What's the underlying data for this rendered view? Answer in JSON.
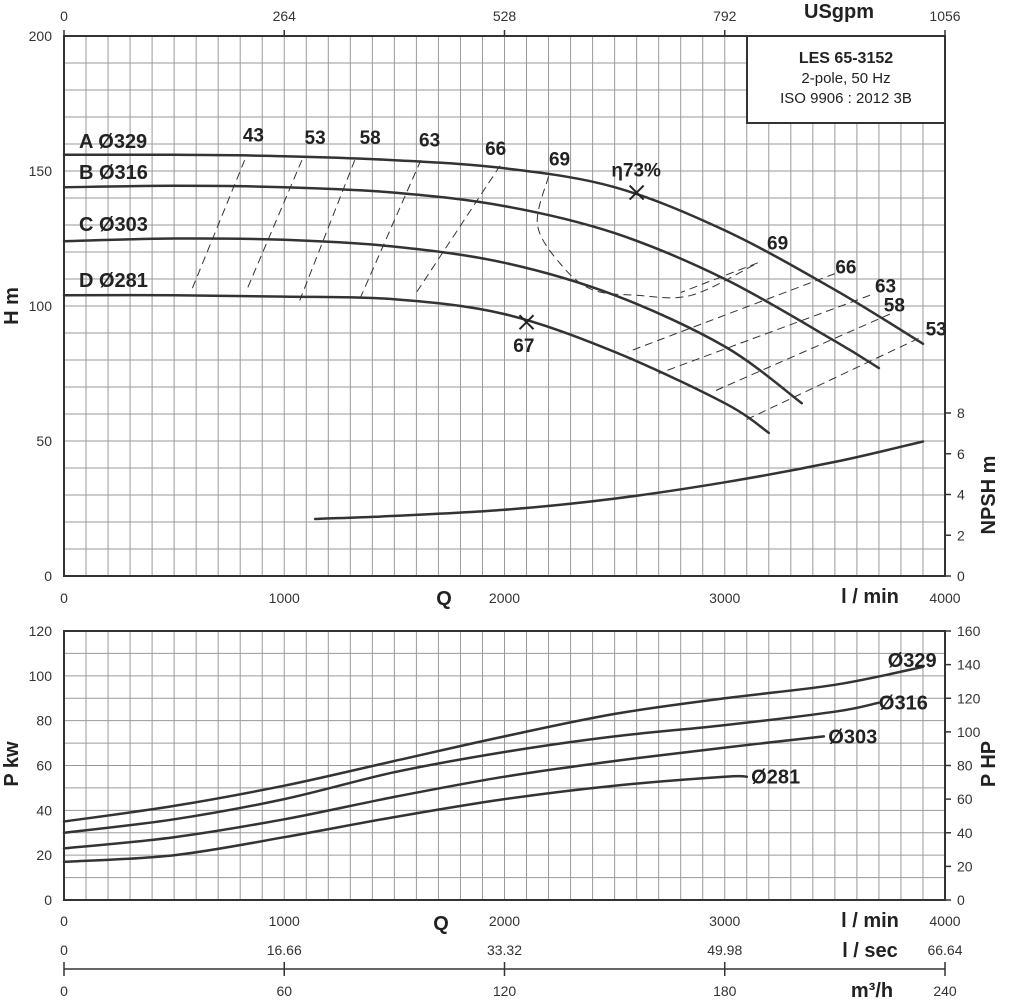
{
  "chart_data": [
    {
      "id": "head",
      "type": "line",
      "title": "LES 65-3152",
      "subtitle_lines": [
        "2-pole, 50 Hz",
        "ISO 9906 : 2012 3B"
      ],
      "xlabel": "Q",
      "xunit": "l / min",
      "xlim": [
        0,
        4000
      ],
      "x_ticks": [
        "0",
        "1000",
        "2000",
        "3000",
        "4000"
      ],
      "top_axis_label": "USgpm",
      "top_ticks": [
        "0",
        "264",
        "528",
        "792",
        "1056"
      ],
      "ylabel": "H m",
      "ylim": [
        0,
        200
      ],
      "y_ticks": [
        "0",
        "50",
        "100",
        "150",
        "200"
      ],
      "y2label": "NPSH m",
      "y2_ticks": [
        "0",
        "2",
        "4",
        "6",
        "8"
      ],
      "series": [
        {
          "name": "A Ø329",
          "x": [
            0,
            500,
            1000,
            1500,
            2000,
            2500,
            3000,
            3500,
            3900
          ],
          "y": [
            156,
            156,
            155.5,
            154,
            151,
            144,
            128,
            106,
            86
          ]
        },
        {
          "name": "B Ø316",
          "x": [
            0,
            500,
            1000,
            1500,
            2000,
            2500,
            3000,
            3500,
            3700
          ],
          "y": [
            144,
            144.5,
            144,
            142,
            137,
            127,
            110,
            87,
            77
          ]
        },
        {
          "name": "C Ø303",
          "x": [
            0,
            500,
            1000,
            1500,
            2000,
            2500,
            3000,
            3350
          ],
          "y": [
            124,
            125,
            124.5,
            122,
            116,
            104,
            85,
            64
          ]
        },
        {
          "name": "D Ø281",
          "x": [
            0,
            500,
            1000,
            1500,
            2000,
            2500,
            3000,
            3200
          ],
          "y": [
            104,
            104,
            103.5,
            102.5,
            97,
            83,
            64,
            53
          ]
        }
      ],
      "npsh": {
        "x": [
          1140,
          1500,
          2000,
          2500,
          3000,
          3500,
          3900
        ],
        "y": [
          2.8,
          2.95,
          3.25,
          3.8,
          4.6,
          5.6,
          6.6
        ]
      },
      "efficiency_lines": [
        {
          "label": "43",
          "points": [
            [
              820,
              154
            ],
            [
              580,
              106
            ]
          ]
        },
        {
          "label": "53",
          "points": [
            [
              1080,
              154
            ],
            [
              830,
              106
            ]
          ]
        },
        {
          "label": "58",
          "points": [
            [
              1320,
              154
            ],
            [
              1070,
              102
            ]
          ]
        },
        {
          "label": "63",
          "points": [
            [
              1620,
              154
            ],
            [
              1340,
              102
            ]
          ]
        },
        {
          "label": "66",
          "points": [
            [
              1980,
              152
            ],
            [
              1600,
              105
            ]
          ]
        },
        {
          "label": "69",
          "points": [
            [
              2200,
              148
            ],
            [
              2150,
              130
            ],
            [
              2260,
              115
            ],
            [
              2400,
              106
            ],
            [
              2600,
              104
            ],
            [
              2850,
              104
            ],
            [
              3150,
              116
            ]
          ]
        },
        {
          "label": "69",
          "points": [
            [
              3150,
              116
            ],
            [
              2800,
              105
            ]
          ]
        },
        {
          "label": "66",
          "points": [
            [
              3500,
              112
            ],
            [
              2560,
              83
            ]
          ]
        },
        {
          "label": "63",
          "points": [
            [
              3660,
              104
            ],
            [
              2700,
              75
            ]
          ]
        },
        {
          "label": "58",
          "points": [
            [
              3750,
              97
            ],
            [
              2940,
              68
            ]
          ]
        },
        {
          "label": "53",
          "points": [
            [
              3880,
              88
            ],
            [
              3100,
              58
            ]
          ]
        }
      ],
      "efficiency_labels": [
        {
          "text": "43",
          "x": 860,
          "y": 161
        },
        {
          "text": "53",
          "x": 1140,
          "y": 160
        },
        {
          "text": "58",
          "x": 1390,
          "y": 160
        },
        {
          "text": "63",
          "x": 1660,
          "y": 159
        },
        {
          "text": "66",
          "x": 1960,
          "y": 156
        },
        {
          "text": "69",
          "x": 2250,
          "y": 152
        },
        {
          "text": "69",
          "x": 3240,
          "y": 121
        },
        {
          "text": "66",
          "x": 3550,
          "y": 112
        },
        {
          "text": "63",
          "x": 3730,
          "y": 105
        },
        {
          "text": "58",
          "x": 3770,
          "y": 98
        },
        {
          "text": "53",
          "x": 3960,
          "y": 89
        }
      ],
      "markers": [
        {
          "label": "η73%",
          "x": 2600,
          "y": 142,
          "lx": 2485,
          "ly": 148
        },
        {
          "label": "67",
          "x": 2100,
          "y": 94,
          "lx": 2040,
          "ly": 83
        }
      ]
    },
    {
      "id": "power",
      "type": "line",
      "xlabel": "Q",
      "xunit": "l / min",
      "xlim": [
        0,
        4000
      ],
      "x_ticks": [
        "0",
        "1000",
        "2000",
        "3000",
        "4000"
      ],
      "ylabel": "P kw",
      "ylim": [
        0,
        120
      ],
      "y_ticks": [
        "0",
        "20",
        "40",
        "60",
        "80",
        "100",
        "120"
      ],
      "y2label": "P HP",
      "y2_ticks": [
        "0",
        "20",
        "40",
        "60",
        "80",
        "100",
        "120",
        "140",
        "160"
      ],
      "series": [
        {
          "name": "Ø329",
          "x": [
            0,
            500,
            1000,
            1500,
            2000,
            2500,
            3000,
            3500,
            3900
          ],
          "y": [
            35,
            42,
            51,
            62,
            73,
            83,
            90,
            96,
            104
          ]
        },
        {
          "name": "Ø316",
          "x": [
            0,
            500,
            1000,
            1500,
            2000,
            2500,
            3000,
            3500,
            3700
          ],
          "y": [
            30,
            36,
            45,
            57,
            66,
            73,
            78,
            84,
            88
          ]
        },
        {
          "name": "Ø303",
          "x": [
            0,
            500,
            1000,
            1500,
            2000,
            2500,
            3000,
            3450
          ],
          "y": [
            23,
            28,
            36,
            46,
            55,
            62,
            68,
            73
          ]
        },
        {
          "name": "Ø281",
          "x": [
            0,
            500,
            1000,
            1500,
            2000,
            2500,
            3000,
            3100
          ],
          "y": [
            17,
            20,
            28,
            37,
            45,
            51,
            55,
            55
          ]
        }
      ],
      "series_labels": [
        {
          "text": "Ø329",
          "x": 3740,
          "y": 107
        },
        {
          "text": "Ø316",
          "x": 3700,
          "y": 88
        },
        {
          "text": "Ø303",
          "x": 3470,
          "y": 73
        },
        {
          "text": "Ø281",
          "x": 3120,
          "y": 55
        }
      ]
    },
    {
      "id": "flow-scales",
      "type": "table",
      "ls_ticks": [
        "0",
        "16.66",
        "33.32",
        "49.98",
        "66.64"
      ],
      "ls_unit": "l / sec",
      "m3h_ticks": [
        "0",
        "60",
        "120",
        "180",
        "240"
      ],
      "m3h_unit": "m³/h"
    }
  ]
}
